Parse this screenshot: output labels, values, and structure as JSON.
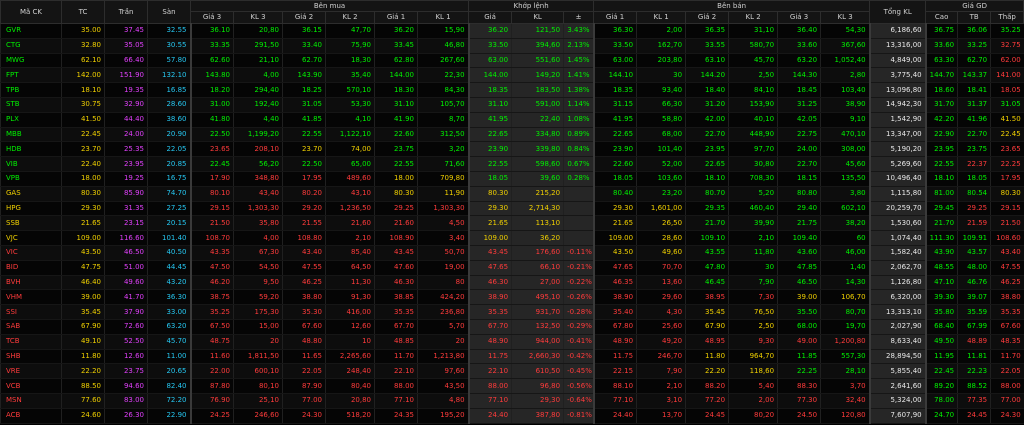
{
  "headers": {
    "symbol": "Mã CK",
    "ref": "TC",
    "ceiling": "Trần",
    "floor": "Sàn",
    "buy_side": "Bên mua",
    "matched": "Khớp lệnh",
    "sell_side": "Bên bán",
    "total_volume": "Tổng KL",
    "price_gd": "Giá GD",
    "buy_cols": [
      "Giá 3",
      "KL 3",
      "Giá 2",
      "KL 2",
      "Giá 1",
      "KL 1"
    ],
    "match_cols": [
      "Giá",
      "KL",
      "±"
    ],
    "sell_cols": [
      "Giá 1",
      "KL 1",
      "Giá 2",
      "KL 2",
      "Giá 3",
      "KL 3"
    ],
    "gd_cols": [
      "Cao",
      "TB",
      "Thấp"
    ]
  },
  "colors": {
    "up": "#00f000",
    "down": "#ff3b3b",
    "ref": "#f0d000",
    "ceiling": "#e040fb",
    "floor": "#26c6f0",
    "neutral": "#e8e8e8"
  },
  "rows": [
    {
      "sym": "GVR",
      "tc": "35.00",
      "tran": "37.45",
      "san": "32.55",
      "g3": "36.10",
      "kl3": "20,80",
      "g2": "36.15",
      "kl2": "47,70",
      "g1": "36.20",
      "kl1": "15,90",
      "mp": "36.20",
      "mkl": "121,50",
      "pct": "3.43%",
      "s1": "36.30",
      "skl1": "2,00",
      "s2": "36.35",
      "skl2": "31,10",
      "s3": "36.40",
      "skl3": "54,30",
      "tkl": "6,186,60",
      "cao": "36.75",
      "tb": "36.06",
      "thap": "35.25"
    },
    {
      "sym": "CTG",
      "tc": "32.80",
      "tran": "35.05",
      "san": "30.55",
      "g3": "33.35",
      "kl3": "291,50",
      "g2": "33.40",
      "kl2": "75,90",
      "g1": "33.45",
      "kl1": "46,80",
      "mp": "33.50",
      "mkl": "394,60",
      "pct": "2.13%",
      "s1": "33.50",
      "skl1": "162,70",
      "s2": "33.55",
      "skl2": "580,70",
      "s3": "33.60",
      "skl3": "367,60",
      "tkl": "13,316,00",
      "cao": "33.60",
      "tb": "33.25",
      "thap": "32.75"
    },
    {
      "sym": "MWG",
      "tc": "62.10",
      "tran": "66.40",
      "san": "57.80",
      "g3": "62.60",
      "kl3": "21,10",
      "g2": "62.70",
      "kl2": "18,30",
      "g1": "62.80",
      "kl1": "267,60",
      "mp": "63.00",
      "mkl": "551,60",
      "pct": "1.45%",
      "s1": "63.00",
      "skl1": "203,80",
      "s2": "63.10",
      "skl2": "45,70",
      "s3": "63.20",
      "skl3": "1,052,40",
      "tkl": "4,849,00",
      "cao": "63.30",
      "tb": "62.70",
      "thap": "62.00"
    },
    {
      "sym": "FPT",
      "tc": "142.00",
      "tran": "151.90",
      "san": "132.10",
      "g3": "143.80",
      "kl3": "4,00",
      "g2": "143.90",
      "kl2": "35,40",
      "g1": "144.00",
      "kl1": "22,30",
      "mp": "144.00",
      "mkl": "149,20",
      "pct": "1.41%",
      "s1": "144.10",
      "skl1": "30",
      "s2": "144.20",
      "skl2": "2,50",
      "s3": "144.30",
      "skl3": "2,80",
      "tkl": "3,775,40",
      "cao": "144.70",
      "tb": "143.37",
      "thap": "141.00"
    },
    {
      "sym": "TPB",
      "tc": "18.10",
      "tran": "19.35",
      "san": "16.85",
      "g3": "18.20",
      "kl3": "294,40",
      "g2": "18.25",
      "kl2": "570,10",
      "g1": "18.30",
      "kl1": "84,30",
      "mp": "18.35",
      "mkl": "183,50",
      "pct": "1.38%",
      "s1": "18.35",
      "skl1": "93,40",
      "s2": "18.40",
      "skl2": "84,10",
      "s3": "18.45",
      "skl3": "103,40",
      "tkl": "13,096,80",
      "cao": "18.60",
      "tb": "18.41",
      "thap": "18.05"
    },
    {
      "sym": "STB",
      "tc": "30.75",
      "tran": "32.90",
      "san": "28.60",
      "g3": "31.00",
      "kl3": "192,40",
      "g2": "31.05",
      "kl2": "53,30",
      "g1": "31.10",
      "kl1": "105,70",
      "mp": "31.10",
      "mkl": "591,00",
      "pct": "1.14%",
      "s1": "31.15",
      "skl1": "66,30",
      "s2": "31.20",
      "skl2": "153,90",
      "s3": "31.25",
      "skl3": "38,90",
      "tkl": "14,942,30",
      "cao": "31.70",
      "tb": "31.37",
      "thap": "31.05"
    },
    {
      "sym": "PLX",
      "tc": "41.50",
      "tran": "44.40",
      "san": "38.60",
      "g3": "41.80",
      "kl3": "4,40",
      "g2": "41.85",
      "kl2": "4,10",
      "g1": "41.90",
      "kl1": "8,70",
      "mp": "41.95",
      "mkl": "22,40",
      "pct": "1.08%",
      "s1": "41.95",
      "skl1": "58,80",
      "s2": "42.00",
      "skl2": "40,10",
      "s3": "42.05",
      "skl3": "9,10",
      "tkl": "1,542,90",
      "cao": "42.20",
      "tb": "41.96",
      "thap": "41.50"
    },
    {
      "sym": "MBB",
      "tc": "22.45",
      "tran": "24.00",
      "san": "20.90",
      "g3": "22.50",
      "kl3": "1,199,20",
      "g2": "22.55",
      "kl2": "1,122,10",
      "g1": "22.60",
      "kl1": "312,50",
      "mp": "22.65",
      "mkl": "334,80",
      "pct": "0.89%",
      "s1": "22.65",
      "skl1": "68,00",
      "s2": "22.70",
      "skl2": "448,90",
      "s3": "22.75",
      "skl3": "470,10",
      "tkl": "13,347,00",
      "cao": "22.90",
      "tb": "22.70",
      "thap": "22.45"
    },
    {
      "sym": "HDB",
      "tc": "23.70",
      "tran": "25.35",
      "san": "22.05",
      "g3": "23.65",
      "kl3": "208,10",
      "g2": "23.70",
      "kl2": "74,00",
      "g1": "23.75",
      "kl1": "3,20",
      "mp": "23.90",
      "mkl": "339,80",
      "pct": "0.84%",
      "s1": "23.90",
      "skl1": "101,40",
      "s2": "23.95",
      "skl2": "97,70",
      "s3": "24.00",
      "skl3": "308,00",
      "tkl": "5,190,20",
      "cao": "23.95",
      "tb": "23.75",
      "thap": "23.65"
    },
    {
      "sym": "VIB",
      "tc": "22.40",
      "tran": "23.95",
      "san": "20.85",
      "g3": "22.45",
      "kl3": "56,20",
      "g2": "22.50",
      "kl2": "65,00",
      "g1": "22.55",
      "kl1": "71,60",
      "mp": "22.55",
      "mkl": "598,60",
      "pct": "0.67%",
      "s1": "22.60",
      "skl1": "52,00",
      "s2": "22.65",
      "skl2": "30,80",
      "s3": "22.70",
      "skl3": "45,60",
      "tkl": "5,269,60",
      "cao": "22.55",
      "tb": "22.37",
      "thap": "22.25"
    },
    {
      "sym": "VPB",
      "tc": "18.00",
      "tran": "19.25",
      "san": "16.75",
      "g3": "17.90",
      "kl3": "348,80",
      "g2": "17.95",
      "kl2": "489,60",
      "g1": "18.00",
      "kl1": "709,80",
      "mp": "18.05",
      "mkl": "39,60",
      "pct": "0.28%",
      "s1": "18.05",
      "skl1": "103,60",
      "s2": "18.10",
      "skl2": "708,30",
      "s3": "18.15",
      "skl3": "135,50",
      "tkl": "10,496,40",
      "cao": "18.10",
      "tb": "18.05",
      "thap": "17.95"
    },
    {
      "sym": "GAS",
      "tc": "80.30",
      "tran": "85.90",
      "san": "74.70",
      "g3": "80.10",
      "kl3": "43,40",
      "g2": "80.20",
      "kl2": "43,10",
      "g1": "80.30",
      "kl1": "11,90",
      "mp": "80.30",
      "mkl": "215,20",
      "pct": "",
      "s1": "80.40",
      "skl1": "23,20",
      "s2": "80.70",
      "skl2": "5,20",
      "s3": "80.80",
      "skl3": "3,80",
      "tkl": "1,115,80",
      "cao": "81.00",
      "tb": "80.54",
      "thap": "80.30"
    },
    {
      "sym": "HPG",
      "tc": "29.30",
      "tran": "31.35",
      "san": "27.25",
      "g3": "29.15",
      "kl3": "1,303,30",
      "g2": "29.20",
      "kl2": "1,236,50",
      "g1": "29.25",
      "kl1": "1,303,30",
      "mp": "29.30",
      "mkl": "2,714,30",
      "pct": "",
      "s1": "29.30",
      "skl1": "1,601,00",
      "s2": "29.35",
      "skl2": "460,40",
      "s3": "29.40",
      "skl3": "602,10",
      "tkl": "20,259,70",
      "cao": "29.45",
      "tb": "29.25",
      "thap": "29.15"
    },
    {
      "sym": "SSB",
      "tc": "21.65",
      "tran": "23.15",
      "san": "20.15",
      "g3": "21.50",
      "kl3": "35,80",
      "g2": "21.55",
      "kl2": "21,60",
      "g1": "21.60",
      "kl1": "4,50",
      "mp": "21.65",
      "mkl": "113,10",
      "pct": "",
      "s1": "21.65",
      "skl1": "26,50",
      "s2": "21.70",
      "skl2": "39,90",
      "s3": "21.75",
      "skl3": "38,20",
      "tkl": "1,530,60",
      "cao": "21.70",
      "tb": "21.59",
      "thap": "21.50"
    },
    {
      "sym": "VJC",
      "tc": "109.00",
      "tran": "116.60",
      "san": "101.40",
      "g3": "108.70",
      "kl3": "4,00",
      "g2": "108.80",
      "kl2": "2,10",
      "g1": "108.90",
      "kl1": "3,40",
      "mp": "109.00",
      "mkl": "36,20",
      "pct": "",
      "s1": "109.00",
      "skl1": "28,60",
      "s2": "109.10",
      "skl2": "2,10",
      "s3": "109.40",
      "skl3": "60",
      "tkl": "1,074,40",
      "cao": "111.30",
      "tb": "109.91",
      "thap": "108.60"
    },
    {
      "sym": "VIC",
      "tc": "43.50",
      "tran": "46.50",
      "san": "40.50",
      "g3": "43.35",
      "kl3": "67,30",
      "g2": "43.40",
      "kl2": "85,40",
      "g1": "43.45",
      "kl1": "50,70",
      "mp": "43.45",
      "mkl": "176,60",
      "pct": "-0.11%",
      "s1": "43.50",
      "skl1": "49,60",
      "s2": "43.55",
      "skl2": "11,80",
      "s3": "43.60",
      "skl3": "46,00",
      "tkl": "1,582,40",
      "cao": "43.90",
      "tb": "43.57",
      "thap": "43.40"
    },
    {
      "sym": "BID",
      "tc": "47.75",
      "tran": "51.00",
      "san": "44.45",
      "g3": "47.50",
      "kl3": "54,50",
      "g2": "47.55",
      "kl2": "64,50",
      "g1": "47.60",
      "kl1": "19,00",
      "mp": "47.65",
      "mkl": "66,10",
      "pct": "-0.21%",
      "s1": "47.65",
      "skl1": "70,70",
      "s2": "47.80",
      "skl2": "30",
      "s3": "47.85",
      "skl3": "1,40",
      "tkl": "2,062,70",
      "cao": "48.55",
      "tb": "48.00",
      "thap": "47.55"
    },
    {
      "sym": "BVH",
      "tc": "46.40",
      "tran": "49.60",
      "san": "43.20",
      "g3": "46.20",
      "kl3": "9,50",
      "g2": "46.25",
      "kl2": "11,30",
      "g1": "46.30",
      "kl1": "80",
      "mp": "46.30",
      "mkl": "27,00",
      "pct": "-0.22%",
      "s1": "46.35",
      "skl1": "13,60",
      "s2": "46.45",
      "skl2": "7,90",
      "s3": "46.50",
      "skl3": "14,30",
      "tkl": "1,126,80",
      "cao": "47.10",
      "tb": "46.76",
      "thap": "46.25"
    },
    {
      "sym": "VHM",
      "tc": "39.00",
      "tran": "41.70",
      "san": "36.30",
      "g3": "38.75",
      "kl3": "59,20",
      "g2": "38.80",
      "kl2": "91,30",
      "g1": "38.85",
      "kl1": "424,20",
      "mp": "38.90",
      "mkl": "495,10",
      "pct": "-0.26%",
      "s1": "38.90",
      "skl1": "29,60",
      "s2": "38.95",
      "skl2": "7,30",
      "s3": "39.00",
      "skl3": "106,70",
      "tkl": "6,320,00",
      "cao": "39.30",
      "tb": "39.07",
      "thap": "38.80"
    },
    {
      "sym": "SSI",
      "tc": "35.45",
      "tran": "37.90",
      "san": "33.00",
      "g3": "35.25",
      "kl3": "175,30",
      "g2": "35.30",
      "kl2": "416,00",
      "g1": "35.35",
      "kl1": "236,80",
      "mp": "35.35",
      "mkl": "931,70",
      "pct": "-0.28%",
      "s1": "35.40",
      "skl1": "4,30",
      "s2": "35.45",
      "skl2": "76,50",
      "s3": "35.50",
      "skl3": "80,70",
      "tkl": "13,313,10",
      "cao": "35.80",
      "tb": "35.59",
      "thap": "35.35"
    },
    {
      "sym": "SAB",
      "tc": "67.90",
      "tran": "72.60",
      "san": "63.20",
      "g3": "67.50",
      "kl3": "15,00",
      "g2": "67.60",
      "kl2": "12,60",
      "g1": "67.70",
      "kl1": "5,70",
      "mp": "67.70",
      "mkl": "132,50",
      "pct": "-0.29%",
      "s1": "67.80",
      "skl1": "25,60",
      "s2": "67.90",
      "skl2": "2,50",
      "s3": "68.00",
      "skl3": "19,70",
      "tkl": "2,027,90",
      "cao": "68.40",
      "tb": "67.99",
      "thap": "67.60"
    },
    {
      "sym": "TCB",
      "tc": "49.10",
      "tran": "52.50",
      "san": "45.70",
      "g3": "48.75",
      "kl3": "20",
      "g2": "48.80",
      "kl2": "10",
      "g1": "48.85",
      "kl1": "20",
      "mp": "48.90",
      "mkl": "944,00",
      "pct": "-0.41%",
      "s1": "48.90",
      "skl1": "49,20",
      "s2": "48.95",
      "skl2": "9,30",
      "s3": "49.00",
      "skl3": "1,200,80",
      "tkl": "8,633,40",
      "cao": "49.50",
      "tb": "48.89",
      "thap": "48.35"
    },
    {
      "sym": "SHB",
      "tc": "11.80",
      "tran": "12.60",
      "san": "11.00",
      "g3": "11.60",
      "kl3": "1,811,50",
      "g2": "11.65",
      "kl2": "2,265,60",
      "g1": "11.70",
      "kl1": "1,213,80",
      "mp": "11.75",
      "mkl": "2,660,30",
      "pct": "-0.42%",
      "s1": "11.75",
      "skl1": "246,70",
      "s2": "11.80",
      "skl2": "964,70",
      "s3": "11.85",
      "skl3": "557,30",
      "tkl": "28,894,50",
      "cao": "11.95",
      "tb": "11.81",
      "thap": "11.70"
    },
    {
      "sym": "VRE",
      "tc": "22.20",
      "tran": "23.75",
      "san": "20.65",
      "g3": "22.00",
      "kl3": "600,10",
      "g2": "22.05",
      "kl2": "248,40",
      "g1": "22.10",
      "kl1": "97,60",
      "mp": "22.10",
      "mkl": "610,50",
      "pct": "-0.45%",
      "s1": "22.15",
      "skl1": "7,90",
      "s2": "22.20",
      "skl2": "118,60",
      "s3": "22.25",
      "skl3": "28,10",
      "tkl": "5,855,40",
      "cao": "22.45",
      "tb": "22.23",
      "thap": "22.05"
    },
    {
      "sym": "VCB",
      "tc": "88.50",
      "tran": "94.60",
      "san": "82.40",
      "g3": "87.80",
      "kl3": "80,10",
      "g2": "87.90",
      "kl2": "80,40",
      "g1": "88.00",
      "kl1": "43,50",
      "mp": "88.00",
      "mkl": "96,80",
      "pct": "-0.56%",
      "s1": "88.10",
      "skl1": "2,10",
      "s2": "88.20",
      "skl2": "5,40",
      "s3": "88.30",
      "skl3": "3,70",
      "tkl": "2,641,60",
      "cao": "89.20",
      "tb": "88.52",
      "thap": "88.00"
    },
    {
      "sym": "MSN",
      "tc": "77.60",
      "tran": "83.00",
      "san": "72.20",
      "g3": "76.90",
      "kl3": "25,10",
      "g2": "77.00",
      "kl2": "20,80",
      "g1": "77.10",
      "kl1": "4,80",
      "mp": "77.10",
      "mkl": "29,30",
      "pct": "-0.64%",
      "s1": "77.10",
      "skl1": "3,10",
      "s2": "77.20",
      "skl2": "2,00",
      "s3": "77.30",
      "skl3": "32,40",
      "tkl": "5,324,00",
      "cao": "78.00",
      "tb": "77.35",
      "thap": "77.00"
    },
    {
      "sym": "ACB",
      "tc": "24.60",
      "tran": "26.30",
      "san": "22.90",
      "g3": "24.25",
      "kl3": "246,60",
      "g2": "24.30",
      "kl2": "518,20",
      "g1": "24.35",
      "kl1": "195,20",
      "mp": "24.40",
      "mkl": "387,80",
      "pct": "-0.81%",
      "s1": "24.40",
      "skl1": "13,70",
      "s2": "24.45",
      "skl2": "80,20",
      "s3": "24.50",
      "skl3": "120,80",
      "tkl": "7,607,90",
      "cao": "24.70",
      "tb": "24.45",
      "thap": "24.30"
    }
  ]
}
